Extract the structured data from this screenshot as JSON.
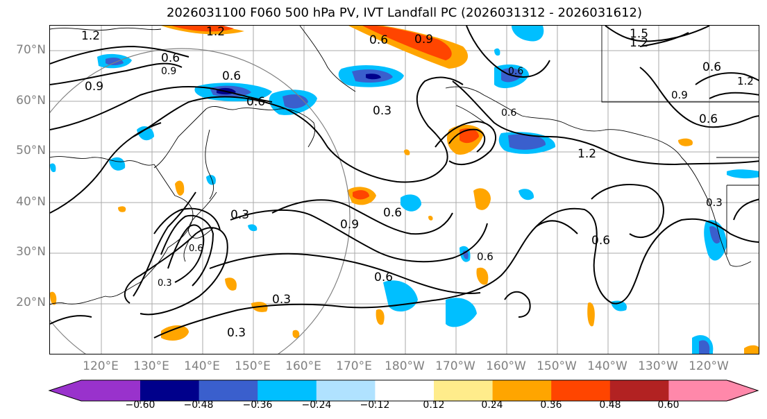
{
  "title": "2026031100 F060 500 hPa PV, IVT Landfall PC (2026031312 - 2026031612)",
  "lat_labels": [
    "70°N",
    "60°N",
    "50°N",
    "40°N",
    "30°N",
    "20°N"
  ],
  "lon_labels": [
    "120°E",
    "130°E",
    "140°E",
    "150°E",
    "160°E",
    "170°E",
    "180°W",
    "170°W",
    "160°W",
    "150°W",
    "140°W",
    "130°W",
    "120°W"
  ],
  "contour_labels": [
    "1.2",
    "1.2",
    "0.9",
    "0.6",
    "0.6",
    "0.9",
    "0.6",
    "0.6",
    "0.3",
    "0.6",
    "0.9",
    "1.2",
    "0.6",
    "1.5",
    "1.2",
    "0.6",
    "0.9",
    "1.2",
    "0.6",
    "0.3",
    "0.9",
    "0.6",
    "0.6",
    "0.3",
    "0.3",
    "0.3",
    "0.6",
    "0.6",
    "0.3",
    "0.6"
  ],
  "colorbar": {
    "tick_labels": [
      "−0.60",
      "−0.48",
      "−0.36",
      "−0.24",
      "−0.12",
      "0.12",
      "0.24",
      "0.36",
      "0.48",
      "0.60"
    ],
    "colors": [
      "#9932cc",
      "#00008b",
      "#3a5fcd",
      "#00bfff",
      "#b0e2ff",
      "#ffffff",
      "#ffec8b",
      "#ffa500",
      "#ff4500",
      "#b22222",
      "#ff88aa"
    ]
  }
}
